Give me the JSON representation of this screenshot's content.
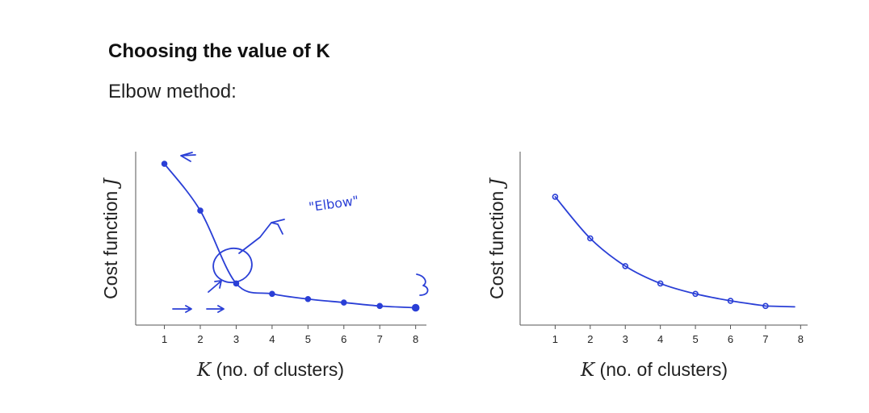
{
  "slide": {
    "title": "Choosing the value of K",
    "subtitle": "Elbow method:"
  },
  "colors": {
    "ink": "#2a3fd6",
    "axis": "#555555",
    "text": "#222222"
  },
  "chart_data": [
    {
      "type": "line",
      "title": "",
      "xlabel": "(no. of clusters)",
      "xlabel_var": "K",
      "ylabel": "Cost function",
      "ylabel_var": "J",
      "x": [
        1,
        2,
        3,
        4,
        5,
        6,
        7,
        8
      ],
      "xlim": [
        0.2,
        8.3
      ],
      "ylim": [
        0,
        10
      ],
      "values": [
        9.3,
        6.6,
        2.4,
        1.8,
        1.5,
        1.3,
        1.1,
        1.0
      ],
      "annotations": [
        "\"Elbow\""
      ],
      "grid": false
    },
    {
      "type": "line",
      "title": "",
      "xlabel": "(no. of clusters)",
      "xlabel_var": "K",
      "ylabel": "Cost function",
      "ylabel_var": "J",
      "x": [
        1,
        2,
        3,
        4,
        5,
        6,
        7
      ],
      "xlim": [
        0,
        8.2
      ],
      "ylim": [
        0,
        10
      ],
      "values": [
        7.4,
        5.0,
        3.4,
        2.4,
        1.8,
        1.4,
        1.1
      ],
      "grid": false
    }
  ]
}
